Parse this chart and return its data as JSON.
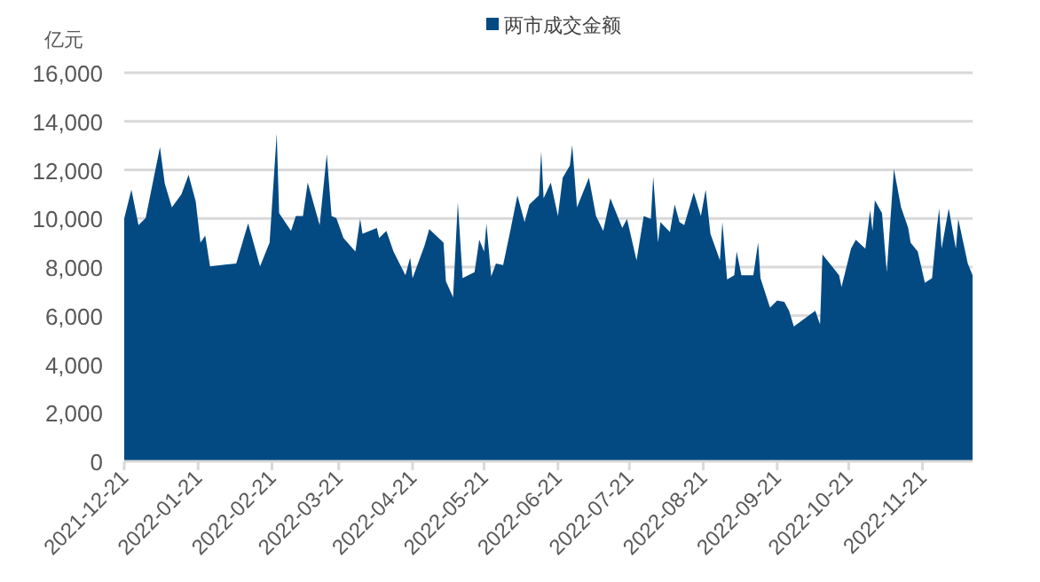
{
  "chart_data": {
    "type": "area",
    "ylabel": "亿元",
    "legend": "top",
    "grid": "y",
    "x": [
      "2021-12-21",
      "2021-12-24",
      "2021-12-27",
      "2021-12-30",
      "2022-01-05",
      "2022-01-07",
      "2022-01-10",
      "2022-01-14",
      "2022-01-17",
      "2022-01-20",
      "2022-01-22",
      "2022-01-24",
      "2022-01-26",
      "2022-02-06",
      "2022-02-11",
      "2022-02-16",
      "2022-02-20",
      "2022-02-23",
      "2022-02-24",
      "2022-03-01",
      "2022-03-03",
      "2022-03-06",
      "2022-03-08",
      "2022-03-13",
      "2022-03-16",
      "2022-03-18",
      "2022-03-20",
      "2022-03-23",
      "2022-03-28",
      "2022-03-30",
      "2022-03-31",
      "2022-04-06",
      "2022-04-07",
      "2022-04-10",
      "2022-04-13",
      "2022-04-18",
      "2022-04-20",
      "2022-04-21",
      "2022-04-26",
      "2022-04-28",
      "2022-05-04",
      "2022-05-05",
      "2022-05-08",
      "2022-05-10",
      "2022-05-12",
      "2022-05-17",
      "2022-05-19",
      "2022-05-21",
      "2022-05-22",
      "2022-05-24",
      "2022-05-26",
      "2022-05-29",
      "2022-06-01",
      "2022-06-04",
      "2022-06-07",
      "2022-06-09",
      "2022-06-13",
      "2022-06-14",
      "2022-06-15",
      "2022-06-18",
      "2022-06-21",
      "2022-06-23",
      "2022-06-26",
      "2022-06-27",
      "2022-06-29",
      "2022-07-04",
      "2022-07-07",
      "2022-07-10",
      "2022-07-13",
      "2022-07-18",
      "2022-07-20",
      "2022-07-24",
      "2022-07-27",
      "2022-07-30",
      "2022-07-31",
      "2022-08-02",
      "2022-08-03",
      "2022-08-07",
      "2022-08-09",
      "2022-08-11",
      "2022-08-13",
      "2022-08-17",
      "2022-08-20",
      "2022-08-22",
      "2022-08-24",
      "2022-08-28",
      "2022-08-29",
      "2022-08-31",
      "2022-09-03",
      "2022-09-04",
      "2022-09-06",
      "2022-09-11",
      "2022-09-13",
      "2022-09-14",
      "2022-09-18",
      "2022-09-21",
      "2022-09-24",
      "2022-09-26",
      "2022-09-28",
      "2022-10-07",
      "2022-10-09",
      "2022-10-10",
      "2022-10-17",
      "2022-10-18",
      "2022-10-22",
      "2022-10-24",
      "2022-10-28",
      "2022-10-30",
      "2022-10-31",
      "2022-11-01",
      "2022-11-04",
      "2022-11-06",
      "2022-11-09",
      "2022-11-12",
      "2022-11-15",
      "2022-11-16",
      "2022-11-19",
      "2022-11-22",
      "2022-11-25",
      "2022-11-27",
      "2022-11-28",
      "2022-11-29",
      "2022-12-02",
      "2022-12-05",
      "2022-12-06",
      "2022-12-10",
      "2022-12-12"
    ],
    "series": [
      {
        "name": "两市成交金额",
        "color": "#034a83",
        "values": [
          10000,
          11190,
          9730,
          10020,
          12940,
          11440,
          10460,
          11000,
          11800,
          10700,
          9000,
          9300,
          8030,
          8150,
          9800,
          8030,
          9000,
          13500,
          10220,
          9490,
          10100,
          10100,
          11480,
          9730,
          12650,
          10100,
          10020,
          9200,
          8640,
          9980,
          9370,
          9610,
          9200,
          9490,
          8640,
          7660,
          8390,
          7540,
          8880,
          9560,
          9000,
          7420,
          6760,
          10660,
          7540,
          7790,
          9120,
          8640,
          9780,
          7620,
          8150,
          8080,
          9490,
          10950,
          9850,
          10580,
          10950,
          12770,
          10830,
          11480,
          10100,
          11680,
          12170,
          13020,
          10460,
          11680,
          10100,
          9490,
          10830,
          9610,
          9980,
          8270,
          10100,
          9980,
          11730,
          9000,
          9850,
          9440,
          10580,
          9850,
          9730,
          11070,
          10100,
          11190,
          9370,
          8270,
          9850,
          7490,
          7660,
          8640,
          7660,
          7660,
          9000,
          7540,
          6330,
          6620,
          6570,
          6200,
          5550,
          6200,
          5640,
          8520,
          7660,
          7180,
          8760,
          9120,
          8760,
          10340,
          9490,
          10750,
          10220,
          7790,
          12040,
          10460,
          9610,
          9000,
          8640,
          7350,
          7540,
          9610,
          10410,
          8760,
          10410,
          8760,
          9980,
          8150,
          7660
        ]
      }
    ],
    "xlim": [
      "2021-12-21",
      "2022-12-12"
    ],
    "xticks": [
      "2021-12-21",
      "2022-01-21",
      "2022-02-21",
      "2022-03-21",
      "2022-04-21",
      "2022-05-21",
      "2022-06-21",
      "2022-07-21",
      "2022-08-21",
      "2022-09-21",
      "2022-10-21",
      "2022-11-21"
    ],
    "ylim": [
      0,
      16000
    ],
    "yticks": [
      0,
      {
        "value": 2000,
        "label": "2,000"
      },
      {
        "value": 4000,
        "label": "4,000"
      },
      {
        "value": 6000,
        "label": "6,000"
      },
      {
        "value": 8000,
        "label": "8,000"
      },
      {
        "value": 10000,
        "label": "10,000"
      },
      {
        "value": 12000,
        "label": "12,000"
      },
      {
        "value": 14000,
        "label": "14,000"
      },
      {
        "value": 16000,
        "label": "16,000"
      }
    ]
  }
}
